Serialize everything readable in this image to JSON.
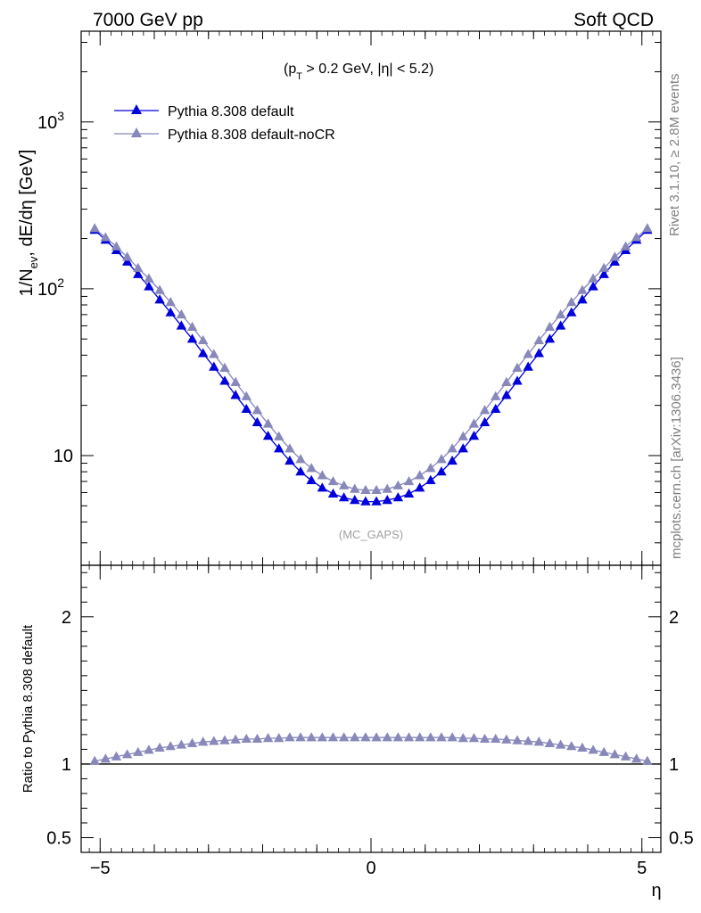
{
  "header": {
    "left": "7000 GeV pp",
    "right": "Soft QCD"
  },
  "side_labels": {
    "rivet": "Rivet 3.1.10, ≥ 2.8M events",
    "mcplots": "mcplots.cern.ch [arXiv:1306.3436]"
  },
  "chart_data": [
    {
      "type": "line",
      "panel": "main",
      "annotation": "(p_T > 0.2 GeV, |η| < 5.2)",
      "watermark": "(MC_GAPS)",
      "ylabel": "1/N_ev, dE/dη [GeV]",
      "yscale": "log",
      "ylim": [
        2.2,
        3500
      ],
      "xlim": [
        -5.35,
        5.35
      ],
      "legend_position": "top-left",
      "x": [
        -5.1,
        -4.9,
        -4.7,
        -4.5,
        -4.3,
        -4.1,
        -3.9,
        -3.7,
        -3.5,
        -3.3,
        -3.1,
        -2.9,
        -2.7,
        -2.5,
        -2.3,
        -2.1,
        -1.9,
        -1.7,
        -1.5,
        -1.3,
        -1.1,
        -0.9,
        -0.7,
        -0.5,
        -0.3,
        -0.1,
        0.1,
        0.3,
        0.5,
        0.7,
        0.9,
        1.1,
        1.3,
        1.5,
        1.7,
        1.9,
        2.1,
        2.3,
        2.5,
        2.7,
        2.9,
        3.1,
        3.3,
        3.5,
        3.7,
        3.9,
        4.1,
        4.3,
        4.5,
        4.7,
        4.9,
        5.1
      ],
      "series": [
        {
          "name": "Pythia 8.308 default",
          "color": "#0000dd",
          "values": [
            225,
            196,
            170,
            145,
            122,
            103,
            86,
            72,
            60,
            50,
            41,
            34,
            28,
            23,
            19,
            15.8,
            13.1,
            11.0,
            9.3,
            8.0,
            7.1,
            6.4,
            5.9,
            5.6,
            5.4,
            5.3,
            5.3,
            5.4,
            5.6,
            5.9,
            6.4,
            7.1,
            8.0,
            9.3,
            11.0,
            13.1,
            15.8,
            19,
            23,
            28,
            34,
            41,
            50,
            60,
            72,
            86,
            103,
            122,
            145,
            170,
            196,
            225
          ]
        },
        {
          "name": "Pythia 8.308 default-noCR",
          "color": "#8888bb",
          "values": [
            230,
            203,
            179,
            155,
            133,
            115,
            98,
            83,
            70,
            59,
            49,
            40.5,
            33.5,
            27.5,
            22.6,
            18.7,
            15.5,
            13.0,
            11.0,
            9.5,
            8.4,
            7.6,
            7.0,
            6.6,
            6.3,
            6.2,
            6.2,
            6.3,
            6.6,
            7.0,
            7.6,
            8.4,
            9.5,
            11.0,
            13.0,
            15.5,
            18.7,
            22.6,
            27.5,
            33.5,
            40.5,
            49,
            59,
            70,
            83,
            98,
            115,
            133,
            155,
            179,
            203,
            230
          ]
        }
      ]
    },
    {
      "type": "line",
      "panel": "ratio",
      "ylabel": "Ratio to Pythia 8.308 default",
      "xlabel": "η",
      "ylim": [
        0.4,
        2.35
      ],
      "xlim": [
        -5.35,
        5.35
      ],
      "ratio_values": [
        1.02,
        1.035,
        1.05,
        1.065,
        1.08,
        1.095,
        1.11,
        1.12,
        1.13,
        1.14,
        1.15,
        1.155,
        1.16,
        1.165,
        1.17,
        1.17,
        1.175,
        1.175,
        1.18,
        1.18,
        1.18,
        1.18,
        1.18,
        1.18,
        1.18,
        1.18,
        1.18,
        1.18,
        1.18,
        1.18,
        1.18,
        1.18,
        1.18,
        1.18,
        1.175,
        1.175,
        1.17,
        1.17,
        1.165,
        1.16,
        1.155,
        1.15,
        1.14,
        1.13,
        1.12,
        1.11,
        1.095,
        1.08,
        1.065,
        1.05,
        1.035,
        1.02
      ]
    }
  ]
}
